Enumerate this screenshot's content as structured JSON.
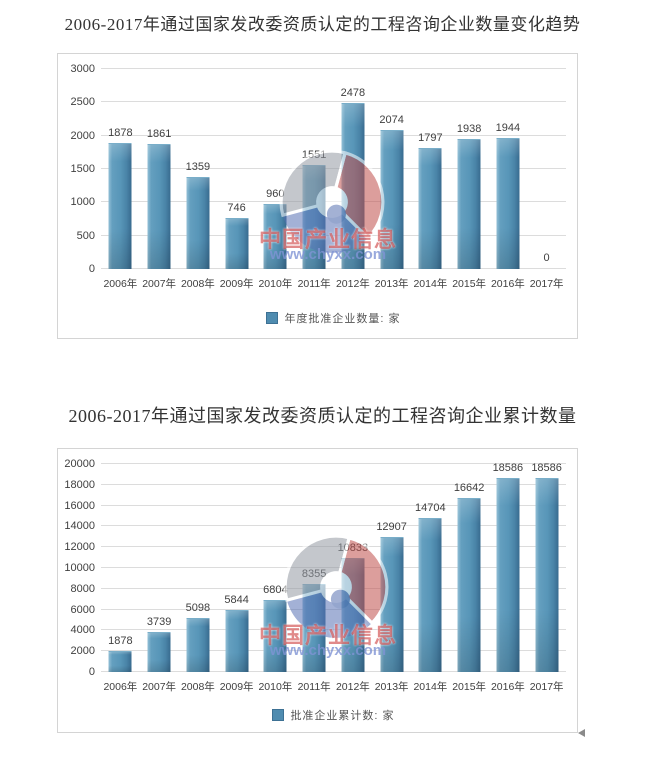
{
  "watermark": {
    "line1": "中国产业信息",
    "line2": "www.chyxx.com"
  },
  "colors": {
    "bar": "#5896b8",
    "legend_swatch": "#4f8cb0",
    "gridline": "#dcdcdc",
    "text": "#404040",
    "watermark_red": "#c92a2a",
    "watermark_blue": "#8094d5"
  },
  "chart_data": [
    {
      "type": "bar",
      "title": "2006-2017年通过国家发改委资质认定的工程咨询企业数量变化趋势",
      "categories": [
        "2006年",
        "2007年",
        "2008年",
        "2009年",
        "2010年",
        "2011年",
        "2012年",
        "2013年",
        "2014年",
        "2015年",
        "2016年",
        "2017年"
      ],
      "values": [
        1878,
        1861,
        1359,
        746,
        960,
        1551,
        2478,
        2074,
        1797,
        1938,
        1944,
        0
      ],
      "legend": "年度批准企业数量: 家",
      "xlabel": "",
      "ylabel": "",
      "ylim": [
        0,
        3000
      ],
      "ytick_step": 500,
      "grid": true,
      "legend_position": "bottom"
    },
    {
      "type": "bar",
      "title": "2006-2017年通过国家发改委资质认定的工程咨询企业累计数量",
      "categories": [
        "2006年",
        "2007年",
        "2008年",
        "2009年",
        "2010年",
        "2011年",
        "2012年",
        "2013年",
        "2014年",
        "2015年",
        "2016年",
        "2017年"
      ],
      "values": [
        1878,
        3739,
        5098,
        5844,
        6804,
        8355,
        10833,
        12907,
        14704,
        16642,
        18586,
        18586
      ],
      "legend": "批准企业累计数: 家",
      "xlabel": "",
      "ylabel": "",
      "ylim": [
        0,
        20000
      ],
      "ytick_step": 2000,
      "grid": true,
      "legend_position": "bottom"
    }
  ]
}
